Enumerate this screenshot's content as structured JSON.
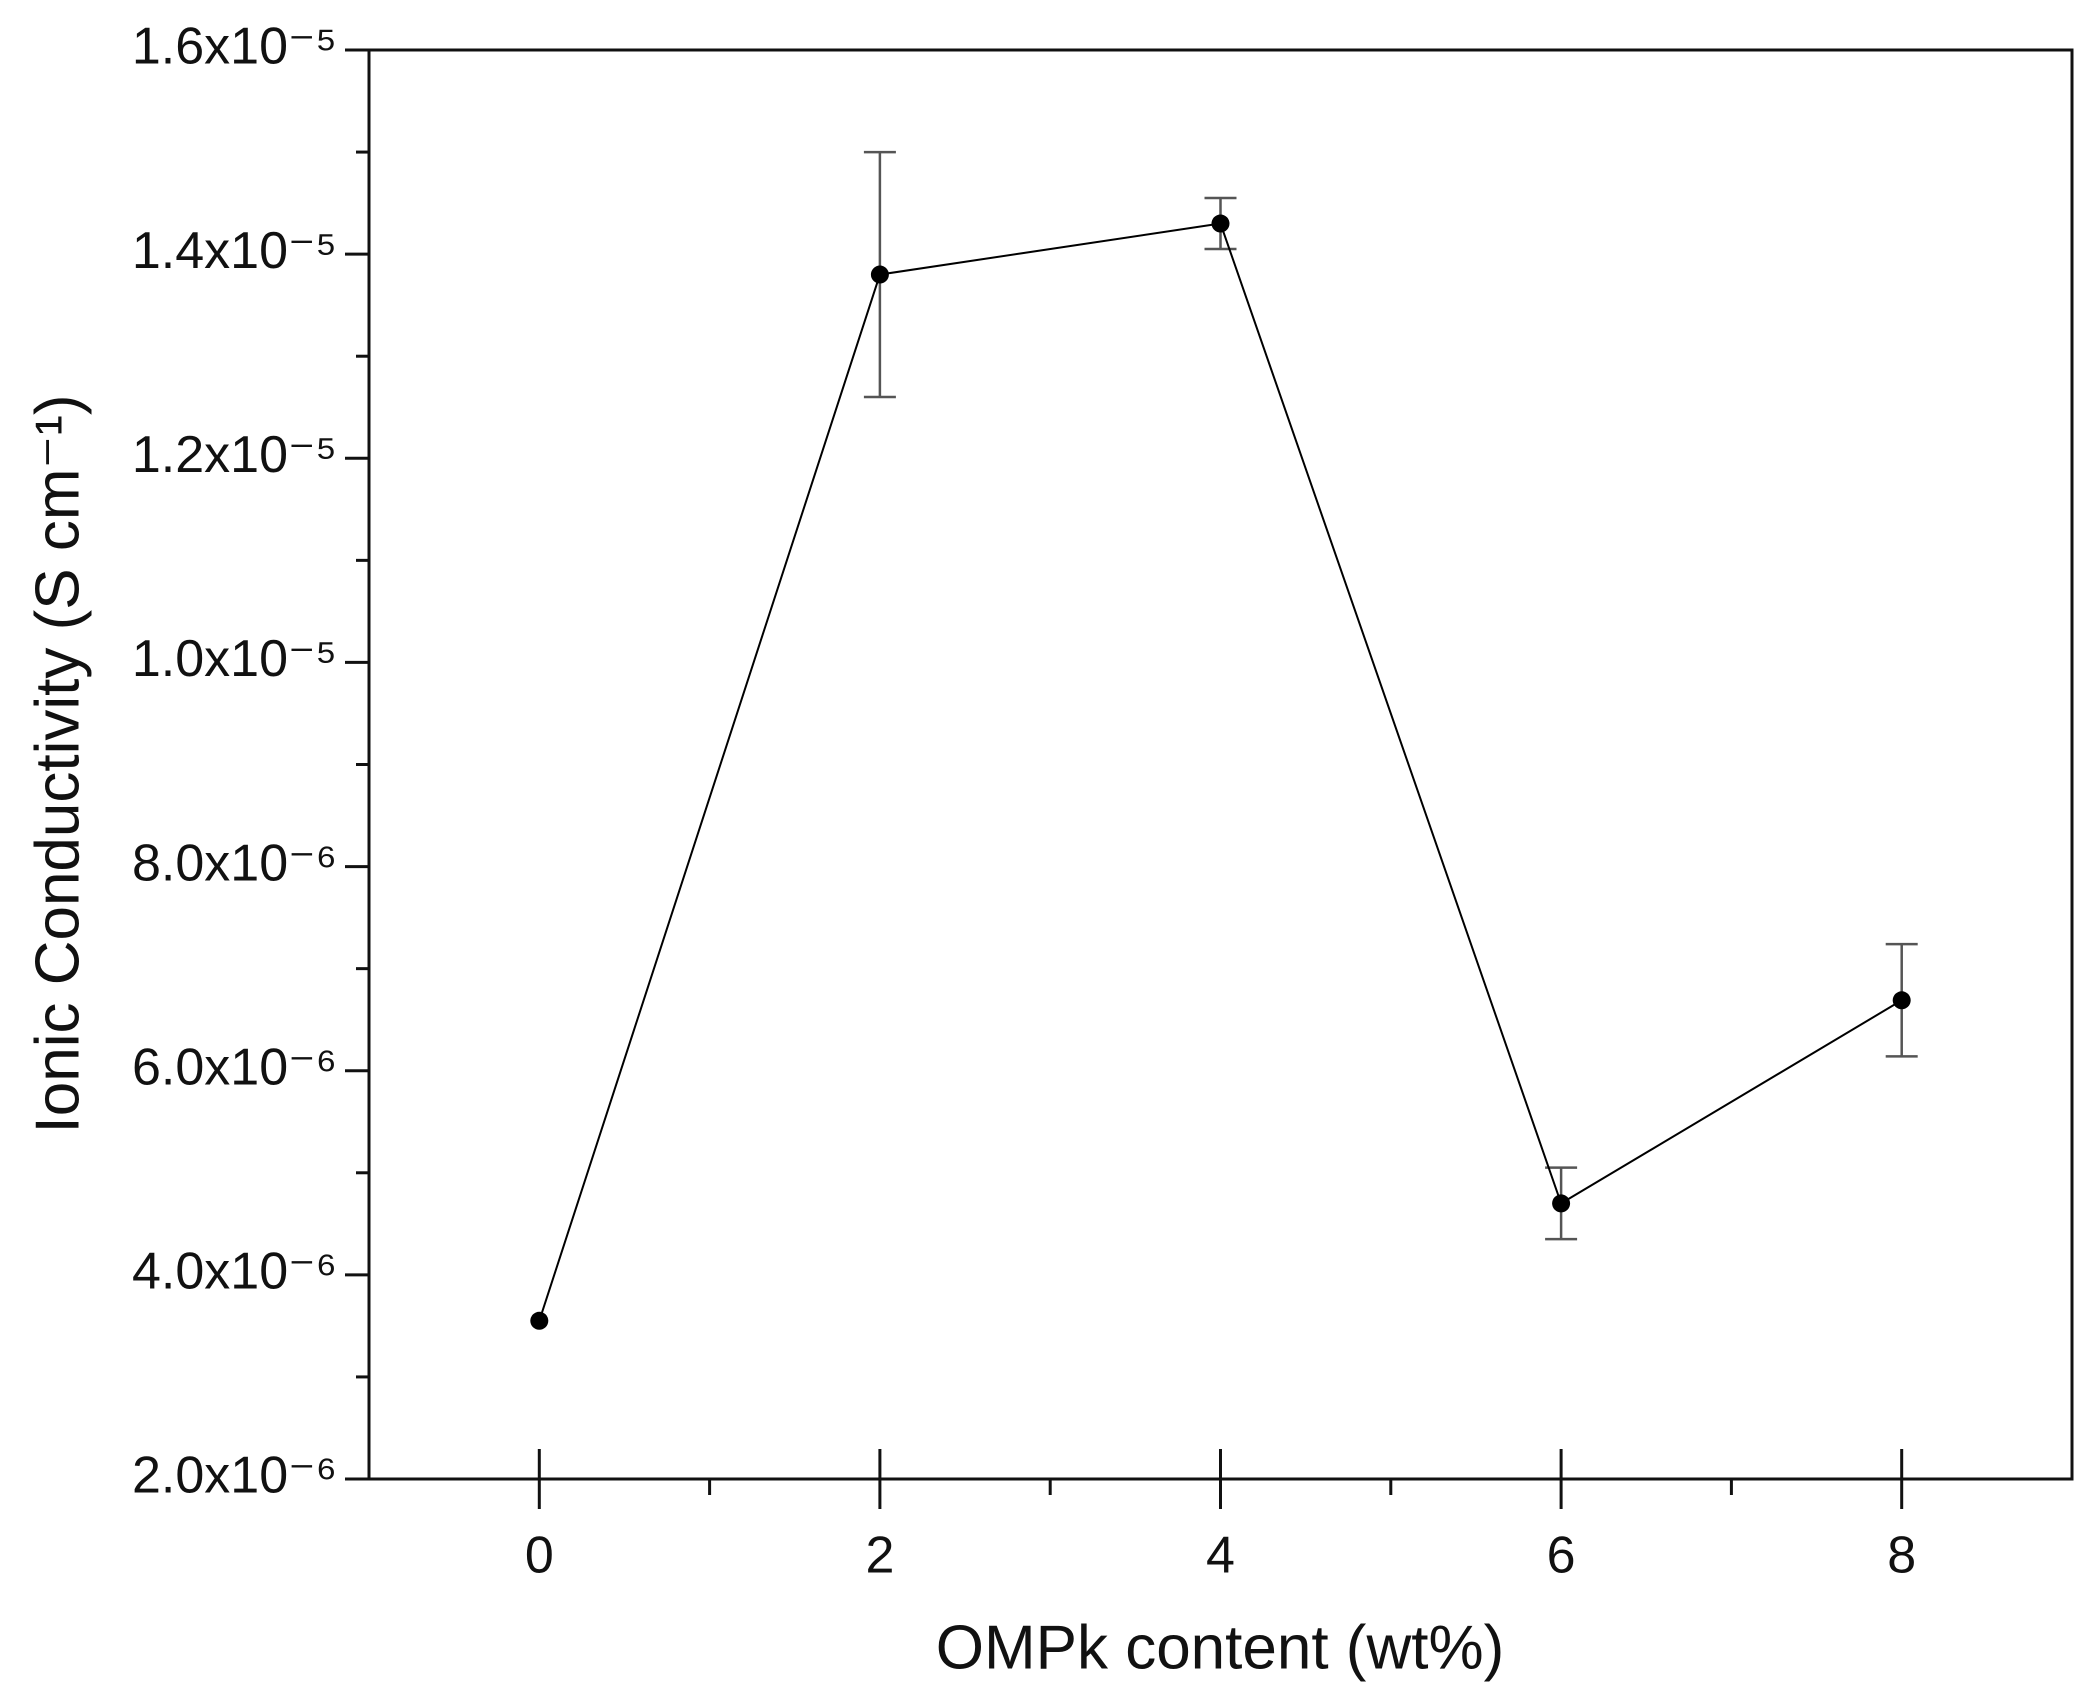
{
  "chart_data": {
    "type": "line",
    "x_label": "OMPk content (wt%)",
    "y_label": "Ionic Conductivity (S cm⁻¹)",
    "x": [
      0,
      2,
      4,
      6,
      8
    ],
    "values": [
      3.55e-06,
      1.38e-05,
      1.43e-05,
      4.7e-06,
      6.69e-06
    ],
    "errors": [
      0,
      1.2e-06,
      2.5e-07,
      3.5e-07,
      5.5e-07
    ],
    "color": "#000000",
    "xlim": [
      -1,
      9
    ],
    "xticks": [
      0,
      2,
      4,
      6,
      8
    ],
    "ylim": [
      2e-06,
      1.6e-05
    ],
    "yticks": [
      {
        "value": 2e-06,
        "label": "2.0x10⁻⁶"
      },
      {
        "value": 4e-06,
        "label": "4.0x10⁻⁶"
      },
      {
        "value": 6e-06,
        "label": "6.0x10⁻⁶"
      },
      {
        "value": 8e-06,
        "label": "8.0x10⁻⁶"
      },
      {
        "value": 1e-05,
        "label": "1.0x10⁻⁵"
      },
      {
        "value": 1.2e-05,
        "label": "1.2x10⁻⁵"
      },
      {
        "value": 1.4e-05,
        "label": "1.4x10⁻⁵"
      },
      {
        "value": 1.6e-05,
        "label": "1.6x10⁻⁵"
      }
    ]
  }
}
